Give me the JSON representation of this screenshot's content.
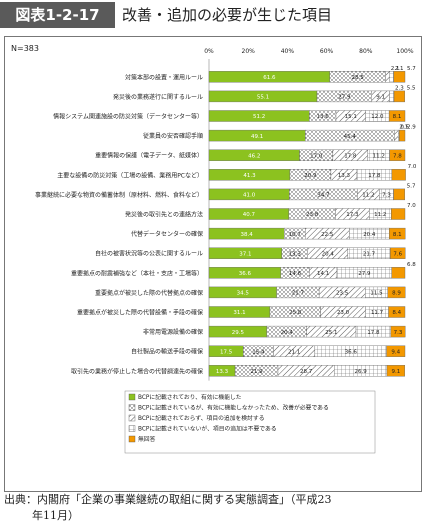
{
  "figure": {
    "label": "図表1-2-17",
    "title": "改善・追加の必要が生じた項目",
    "source_line1": "出典：内閣府「企業の事業継続の取組に関する実態調査」（平成23",
    "source_line2": "年11月）"
  },
  "chart_data": {
    "type": "bar",
    "orientation": "horizontal",
    "stacked": true,
    "note": "N=383",
    "xlim": [
      0,
      100
    ],
    "xticks": [
      "0%",
      "20%",
      "40%",
      "60%",
      "80%",
      "100%"
    ],
    "categories": [
      "対策本部の設置・運用ルール",
      "発災後の業務遂行に関するルール",
      "情報システム関連施設の防災対策（データセンター等）",
      "従業員の安否確認手順",
      "重要情報の保護（電子データ、紙媒体）",
      "主要な設備の防災対策（工場の設備、業務用PCなど）",
      "事業継続に必要な物資の備蓄体制（原材料、燃料、食料など）",
      "発災後の取引先との連絡方法",
      "代替データセンターの確保",
      "自社の被害状況等の公表に関するルール",
      "重要拠点の耐震補強など（本社・支店・工場等）",
      "重要拠点が被災した際の代替拠点の確保",
      "重要拠点が被災した際の代替設備・手段の確保",
      "非常用電源設備の確保",
      "自社製品の輸送手段の確保",
      "取引先の業務が停止した場合の代替調達先の確保"
    ],
    "series": [
      {
        "name": "BCPに記載されており、有効に機能した",
        "color": "#8cc21f",
        "values": [
          61.6,
          55.1,
          51.2,
          49.1,
          46.2,
          41.3,
          41.0,
          40.7,
          38.4,
          37.1,
          36.6,
          34.5,
          31.1,
          29.5,
          17.5,
          13.3
        ]
      },
      {
        "name": "BCPに記載されているが、有効に機能しなかったため、改善が必要である",
        "color": "#ffffff",
        "values": [
          28.5,
          27.9,
          13.6,
          45.4,
          17.0,
          20.9,
          34.7,
          23.8,
          10.7,
          13.3,
          14.6,
          21.7,
          25.8,
          20.4,
          15.4,
          21.9
        ]
      },
      {
        "name": "BCPに記載されておらず、項目の追加を検討する",
        "color": "#ffffff",
        "values": [
          2.1,
          9.1,
          15.1,
          2.1,
          17.8,
          13.3,
          11.2,
          17.3,
          22.5,
          20.4,
          14.1,
          23.5,
          23.0,
          25.1,
          21.1,
          28.7
        ]
      },
      {
        "name": "BCPに記載されていないが、項目の追加は不要である",
        "color": "#ffffff",
        "values": [
          2.1,
          2.3,
          12.0,
          0.5,
          11.2,
          17.8,
          7.3,
          11.2,
          20.4,
          21.7,
          27.9,
          11.5,
          11.7,
          17.8,
          36.6,
          26.9
        ]
      },
      {
        "name": "無回答",
        "color": "#f39800",
        "values": [
          5.7,
          5.5,
          8.1,
          2.9,
          7.8,
          7.0,
          5.7,
          7.0,
          8.1,
          7.6,
          6.8,
          8.9,
          8.4,
          7.3,
          9.4,
          9.1
        ]
      }
    ]
  }
}
